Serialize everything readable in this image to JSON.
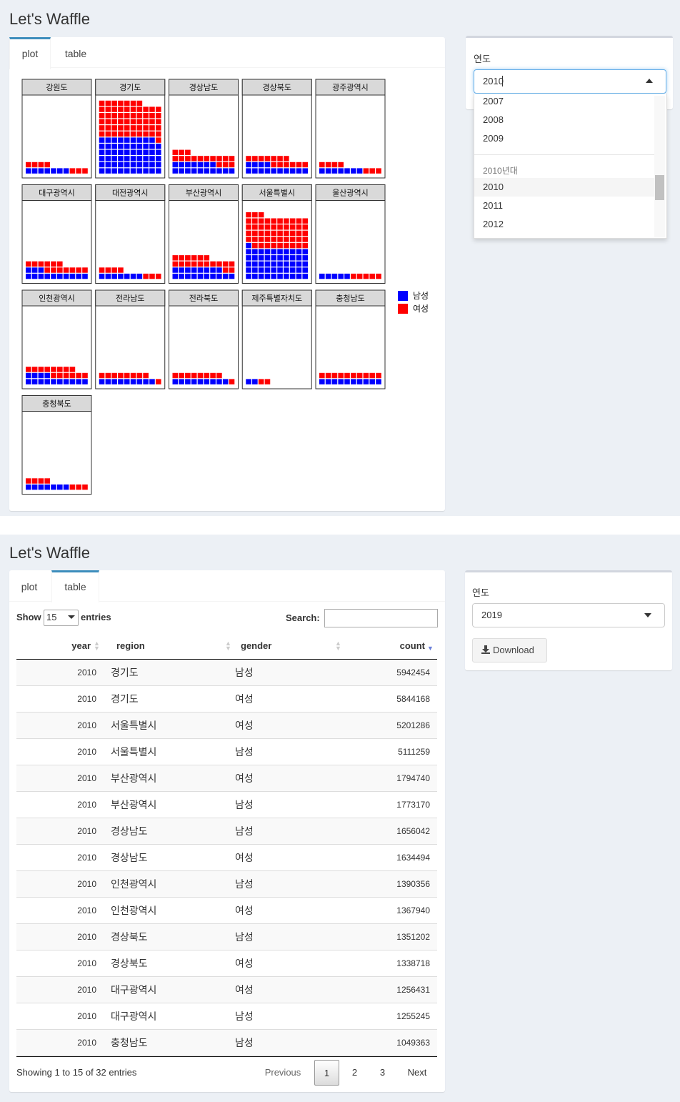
{
  "top": {
    "title": "Let's Waffle",
    "tabs": [
      "plot",
      "table"
    ],
    "plot": {
      "panels": [
        {
          "region": "강원도",
          "male": 7,
          "female": 7
        },
        {
          "region": "경기도",
          "male": 59,
          "female": 58
        },
        {
          "region": "경상남도",
          "male": 17,
          "female": 16
        },
        {
          "region": "경상북도",
          "male": 14,
          "female": 13
        },
        {
          "region": "광주광역시",
          "male": 7,
          "female": 7
        },
        {
          "region": "대구광역시",
          "male": 13,
          "female": 13
        },
        {
          "region": "대전광역시",
          "male": 7,
          "female": 7
        },
        {
          "region": "부산광역시",
          "male": 18,
          "female": 18
        },
        {
          "region": "서울특별시",
          "male": 51,
          "female": 52
        },
        {
          "region": "울산광역시",
          "male": 5,
          "female": 5
        },
        {
          "region": "인천광역시",
          "male": 14,
          "female": 14
        },
        {
          "region": "전라남도",
          "male": 9,
          "female": 9
        },
        {
          "region": "전라북도",
          "male": 9,
          "female": 9
        },
        {
          "region": "제주특별자치도",
          "male": 2,
          "female": 2
        },
        {
          "region": "충청남도",
          "male": 10,
          "female": 10
        },
        {
          "region": "충청북도",
          "male": 7,
          "female": 7
        }
      ],
      "legend": [
        {
          "name": "남성",
          "color": "#0000ff"
        },
        {
          "name": "여성",
          "color": "#ff0000"
        }
      ]
    },
    "sidebar": {
      "label": "연도",
      "selected": "2010",
      "options_before": [
        "2007",
        "2008",
        "2009"
      ],
      "group_label": "2010년대",
      "options_group": [
        "2010",
        "2011",
        "2012"
      ]
    }
  },
  "bottom": {
    "title": "Let's Waffle",
    "tabs": [
      "plot",
      "table"
    ],
    "table": {
      "show_label": "Show",
      "length": "15",
      "entries_label": "entries",
      "search_label": "Search:",
      "columns": [
        "year",
        "region",
        "gender",
        "count"
      ],
      "rows": [
        [
          2010,
          "경기도",
          "남성",
          5942454
        ],
        [
          2010,
          "경기도",
          "여성",
          5844168
        ],
        [
          2010,
          "서울특별시",
          "여성",
          5201286
        ],
        [
          2010,
          "서울특별시",
          "남성",
          5111259
        ],
        [
          2010,
          "부산광역시",
          "여성",
          1794740
        ],
        [
          2010,
          "부산광역시",
          "남성",
          1773170
        ],
        [
          2010,
          "경상남도",
          "남성",
          1656042
        ],
        [
          2010,
          "경상남도",
          "여성",
          1634494
        ],
        [
          2010,
          "인천광역시",
          "남성",
          1390356
        ],
        [
          2010,
          "인천광역시",
          "여성",
          1367940
        ],
        [
          2010,
          "경상북도",
          "남성",
          1351202
        ],
        [
          2010,
          "경상북도",
          "여성",
          1338718
        ],
        [
          2010,
          "대구광역시",
          "여성",
          1256431
        ],
        [
          2010,
          "대구광역시",
          "남성",
          1255245
        ],
        [
          2010,
          "충청남도",
          "남성",
          1049363
        ]
      ],
      "info": "Showing 1 to 15 of 32 entries",
      "pagination": [
        "Previous",
        "1",
        "2",
        "3",
        "Next"
      ]
    },
    "sidebar": {
      "label": "연도",
      "selected": "2019",
      "button": "Download"
    }
  }
}
